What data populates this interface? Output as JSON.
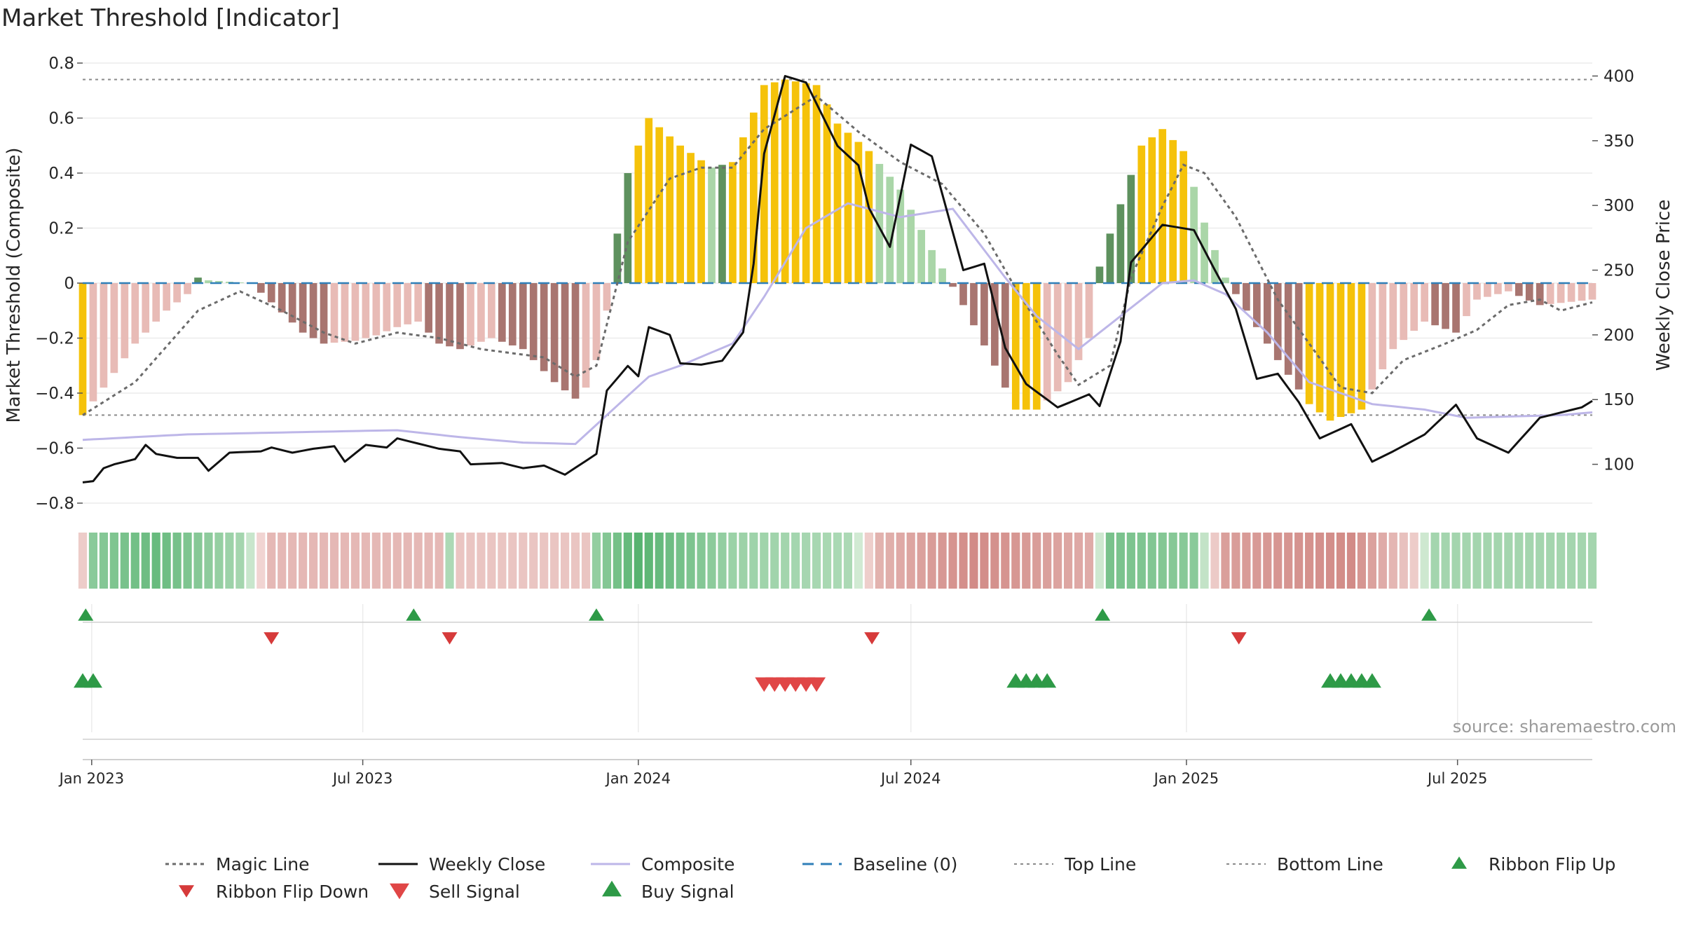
{
  "chart_data": {
    "type": "bar",
    "title": "Market Threshold [Indicator]",
    "ylabel": "Market Threshold (Composite)",
    "ylabel_right": "Weekly Close Price",
    "ylim": [
      -0.8,
      0.8
    ],
    "y2lim": [
      70,
      410
    ],
    "yticks": [
      0.8,
      0.6,
      0.4,
      0.2,
      0,
      -0.2,
      -0.4,
      -0.6,
      -0.8
    ],
    "ytick_labels": [
      "0.8",
      "0.6",
      "0.4",
      "0.2",
      "0",
      "−0.2",
      "−0.4",
      "−0.6",
      "−0.8"
    ],
    "y2ticks": [
      100,
      150,
      200,
      250,
      300,
      350,
      400
    ],
    "y2tick_labels": [
      "100",
      "150",
      "200",
      "250",
      "300",
      "350",
      "400"
    ],
    "x_start": "2022-12-26",
    "x_end": "2025-09-29",
    "x_ticks": [
      "2023-01-01",
      "2023-07-01",
      "2024-01-01",
      "2024-07-01",
      "2025-01-01",
      "2025-07-01"
    ],
    "x_tick_labels": [
      "Jan 2023",
      "Jul 2023",
      "Jan 2024",
      "Jul 2024",
      "Jan 2025",
      "Jul 2025"
    ],
    "top_line": 0.74,
    "bottom_line": -0.48,
    "baseline": 0,
    "source": "source: sharemaestro.com",
    "grid": true,
    "legend_position": "bottom",
    "colors": {
      "bar_extreme": "#f5c20a",
      "bar_pos_strong": "#5e915e",
      "bar_pos_weak": "#aad6a8",
      "bar_neg_strong": "#a87570",
      "bar_neg_weak": "#e8bbb6",
      "weekly_close": "#111111",
      "composite": "#bdb6e8",
      "magic_line": "#6b6b6b",
      "baseline": "#2f7fb8",
      "threshold_line": "#8a8a8a",
      "ribbon_flip_up": "#2e9a47",
      "ribbon_flip_down": "#d63a3a",
      "sell_signal": "#e04646",
      "buy_signal": "#2e9a47"
    },
    "bar_anchors": [
      [
        "2022-12-26",
        -0.48
      ],
      [
        "2023-01-09",
        -0.38
      ],
      [
        "2023-01-30",
        -0.22
      ],
      [
        "2023-02-20",
        -0.1
      ],
      [
        "2023-03-06",
        -0.04
      ],
      [
        "2023-03-13",
        0.02
      ],
      [
        "2023-03-20",
        0.01
      ],
      [
        "2023-04-17",
        0.0
      ],
      [
        "2023-05-01",
        -0.07
      ],
      [
        "2023-05-22",
        -0.18
      ],
      [
        "2023-06-05",
        -0.22
      ],
      [
        "2023-06-26",
        -0.21
      ],
      [
        "2023-07-10",
        -0.19
      ],
      [
        "2023-07-24",
        -0.16
      ],
      [
        "2023-08-07",
        -0.14
      ],
      [
        "2023-08-21",
        -0.22
      ],
      [
        "2023-09-04",
        -0.24
      ],
      [
        "2023-09-25",
        -0.2
      ],
      [
        "2023-10-16",
        -0.24
      ],
      [
        "2023-11-06",
        -0.36
      ],
      [
        "2023-11-20",
        -0.42
      ],
      [
        "2023-11-27",
        -0.38
      ],
      [
        "2023-12-04",
        -0.28
      ],
      [
        "2023-12-11",
        -0.1
      ],
      [
        "2023-12-18",
        0.18
      ],
      [
        "2023-12-25",
        0.4
      ],
      [
        "2024-01-08",
        0.6
      ],
      [
        "2024-01-29",
        0.5
      ],
      [
        "2024-02-19",
        0.42
      ],
      [
        "2024-03-04",
        0.44
      ],
      [
        "2024-03-18",
        0.62
      ],
      [
        "2024-03-25",
        0.72
      ],
      [
        "2024-04-08",
        0.74
      ],
      [
        "2024-04-29",
        0.72
      ],
      [
        "2024-05-13",
        0.58
      ],
      [
        "2024-06-03",
        0.48
      ],
      [
        "2024-06-24",
        0.34
      ],
      [
        "2024-07-15",
        0.12
      ],
      [
        "2024-08-05",
        -0.08
      ],
      [
        "2024-08-26",
        -0.3
      ],
      [
        "2024-09-09",
        -0.46
      ],
      [
        "2024-09-23",
        -0.46
      ],
      [
        "2024-10-14",
        -0.36
      ],
      [
        "2024-10-28",
        -0.2
      ],
      [
        "2024-11-04",
        0.06
      ],
      [
        "2024-11-11",
        0.18
      ],
      [
        "2024-12-02",
        0.5
      ],
      [
        "2024-12-16",
        0.56
      ],
      [
        "2024-12-30",
        0.48
      ],
      [
        "2025-01-13",
        0.22
      ],
      [
        "2025-01-27",
        0.02
      ],
      [
        "2025-02-10",
        -0.1
      ],
      [
        "2025-03-03",
        -0.28
      ],
      [
        "2025-03-24",
        -0.44
      ],
      [
        "2025-04-07",
        -0.5
      ],
      [
        "2025-04-28",
        -0.46
      ],
      [
        "2025-05-19",
        -0.24
      ],
      [
        "2025-06-09",
        -0.14
      ],
      [
        "2025-06-30",
        -0.18
      ],
      [
        "2025-07-14",
        -0.06
      ],
      [
        "2025-08-04",
        -0.03
      ],
      [
        "2025-08-25",
        -0.08
      ],
      [
        "2025-09-29",
        -0.06
      ]
    ],
    "close_anchors": [
      [
        "2022-12-26",
        86
      ],
      [
        "2023-01-02",
        87
      ],
      [
        "2023-01-09",
        97
      ],
      [
        "2023-01-16",
        100
      ],
      [
        "2023-01-30",
        104
      ],
      [
        "2023-02-06",
        115
      ],
      [
        "2023-02-13",
        108
      ],
      [
        "2023-02-27",
        105
      ],
      [
        "2023-03-13",
        105
      ],
      [
        "2023-03-20",
        95
      ],
      [
        "2023-04-03",
        109
      ],
      [
        "2023-04-24",
        110
      ],
      [
        "2023-05-01",
        113
      ],
      [
        "2023-05-15",
        109
      ],
      [
        "2023-05-29",
        112
      ],
      [
        "2023-06-12",
        114
      ],
      [
        "2023-06-19",
        102
      ],
      [
        "2023-07-03",
        115
      ],
      [
        "2023-07-17",
        113
      ],
      [
        "2023-07-24",
        120
      ],
      [
        "2023-08-07",
        116
      ],
      [
        "2023-08-21",
        112
      ],
      [
        "2023-09-04",
        110
      ],
      [
        "2023-09-11",
        100
      ],
      [
        "2023-10-02",
        101
      ],
      [
        "2023-10-16",
        97
      ],
      [
        "2023-10-30",
        99
      ],
      [
        "2023-11-13",
        92
      ],
      [
        "2023-12-04",
        108
      ],
      [
        "2023-12-11",
        157
      ],
      [
        "2023-12-25",
        176
      ],
      [
        "2024-01-01",
        168
      ],
      [
        "2024-01-08",
        206
      ],
      [
        "2024-01-22",
        200
      ],
      [
        "2024-01-29",
        178
      ],
      [
        "2024-02-12",
        177
      ],
      [
        "2024-02-26",
        180
      ],
      [
        "2024-03-11",
        202
      ],
      [
        "2024-03-18",
        255
      ],
      [
        "2024-03-25",
        340
      ],
      [
        "2024-04-08",
        400
      ],
      [
        "2024-04-22",
        395
      ],
      [
        "2024-05-13",
        346
      ],
      [
        "2024-05-27",
        331
      ],
      [
        "2024-06-03",
        298
      ],
      [
        "2024-06-17",
        268
      ],
      [
        "2024-07-01",
        347
      ],
      [
        "2024-07-15",
        338
      ],
      [
        "2024-08-05",
        250
      ],
      [
        "2024-08-19",
        255
      ],
      [
        "2024-09-02",
        190
      ],
      [
        "2024-09-16",
        162
      ],
      [
        "2024-10-07",
        144
      ],
      [
        "2024-10-28",
        154
      ],
      [
        "2024-11-04",
        145
      ],
      [
        "2024-11-18",
        195
      ],
      [
        "2024-11-25",
        256
      ],
      [
        "2024-12-16",
        285
      ],
      [
        "2025-01-06",
        281
      ],
      [
        "2025-01-20",
        250
      ],
      [
        "2025-02-03",
        220
      ],
      [
        "2025-02-17",
        166
      ],
      [
        "2025-03-03",
        170
      ],
      [
        "2025-03-17",
        148
      ],
      [
        "2025-03-31",
        120
      ],
      [
        "2025-04-21",
        131
      ],
      [
        "2025-05-05",
        102
      ],
      [
        "2025-05-19",
        110
      ],
      [
        "2025-06-09",
        123
      ],
      [
        "2025-06-30",
        146
      ],
      [
        "2025-07-14",
        120
      ],
      [
        "2025-08-04",
        109
      ],
      [
        "2025-08-25",
        136
      ],
      [
        "2025-09-08",
        140
      ],
      [
        "2025-09-22",
        144
      ],
      [
        "2025-09-29",
        149
      ]
    ],
    "composite_anchors": [
      [
        "2022-12-26",
        -0.57
      ],
      [
        "2023-03-06",
        -0.55
      ],
      [
        "2023-06-05",
        -0.54
      ],
      [
        "2023-07-24",
        -0.535
      ],
      [
        "2023-09-04",
        -0.56
      ],
      [
        "2023-10-16",
        -0.58
      ],
      [
        "2023-11-20",
        -0.585
      ],
      [
        "2023-12-11",
        -0.48
      ],
      [
        "2024-01-08",
        -0.34
      ],
      [
        "2024-01-29",
        -0.3
      ],
      [
        "2024-03-04",
        -0.22
      ],
      [
        "2024-03-25",
        -0.05
      ],
      [
        "2024-04-22",
        0.2
      ],
      [
        "2024-05-20",
        0.29
      ],
      [
        "2024-06-24",
        0.24
      ],
      [
        "2024-07-29",
        0.27
      ],
      [
        "2024-09-02",
        0.02
      ],
      [
        "2024-09-23",
        -0.12
      ],
      [
        "2024-10-21",
        -0.24
      ],
      [
        "2024-11-18",
        -0.12
      ],
      [
        "2024-12-16",
        0.0
      ],
      [
        "2025-01-06",
        0.01
      ],
      [
        "2025-01-27",
        -0.04
      ],
      [
        "2025-02-24",
        -0.18
      ],
      [
        "2025-03-24",
        -0.36
      ],
      [
        "2025-05-05",
        -0.44
      ],
      [
        "2025-06-09",
        -0.46
      ],
      [
        "2025-07-07",
        -0.49
      ],
      [
        "2025-08-04",
        -0.485
      ],
      [
        "2025-09-08",
        -0.48
      ],
      [
        "2025-09-29",
        -0.47
      ]
    ],
    "magic_anchors": [
      [
        "2022-12-26",
        -0.48
      ],
      [
        "2023-01-30",
        -0.36
      ],
      [
        "2023-03-13",
        -0.1
      ],
      [
        "2023-04-10",
        -0.03
      ],
      [
        "2023-05-08",
        -0.1
      ],
      [
        "2023-06-05",
        -0.18
      ],
      [
        "2023-06-26",
        -0.22
      ],
      [
        "2023-07-24",
        -0.18
      ],
      [
        "2023-08-21",
        -0.2
      ],
      [
        "2023-09-18",
        -0.24
      ],
      [
        "2023-10-30",
        -0.27
      ],
      [
        "2023-11-20",
        -0.34
      ],
      [
        "2023-12-04",
        -0.3
      ],
      [
        "2023-12-25",
        0.15
      ],
      [
        "2024-01-22",
        0.38
      ],
      [
        "2024-02-12",
        0.42
      ],
      [
        "2024-03-04",
        0.42
      ],
      [
        "2024-03-25",
        0.56
      ],
      [
        "2024-04-29",
        0.68
      ],
      [
        "2024-05-27",
        0.55
      ],
      [
        "2024-06-24",
        0.44
      ],
      [
        "2024-07-22",
        0.36
      ],
      [
        "2024-08-19",
        0.18
      ],
      [
        "2024-09-09",
        -0.02
      ],
      [
        "2024-10-07",
        -0.26
      ],
      [
        "2024-10-21",
        -0.37
      ],
      [
        "2024-11-11",
        -0.3
      ],
      [
        "2024-11-25",
        0.02
      ],
      [
        "2024-12-16",
        0.28
      ],
      [
        "2024-12-30",
        0.43
      ],
      [
        "2025-01-13",
        0.4
      ],
      [
        "2025-02-03",
        0.24
      ],
      [
        "2025-03-03",
        -0.06
      ],
      [
        "2025-03-24",
        -0.22
      ],
      [
        "2025-04-14",
        -0.38
      ],
      [
        "2025-05-05",
        -0.4
      ],
      [
        "2025-05-26",
        -0.28
      ],
      [
        "2025-06-23",
        -0.22
      ],
      [
        "2025-07-14",
        -0.17
      ],
      [
        "2025-08-04",
        -0.08
      ],
      [
        "2025-08-25",
        -0.06
      ],
      [
        "2025-09-08",
        -0.1
      ],
      [
        "2025-09-29",
        -0.07
      ]
    ],
    "ribbon_anchors": [
      [
        "2022-12-26",
        -0.15
      ],
      [
        "2023-01-02",
        0.5
      ],
      [
        "2023-02-13",
        0.7
      ],
      [
        "2023-04-10",
        0.35
      ],
      [
        "2023-05-01",
        -0.3
      ],
      [
        "2023-08-21",
        -0.3
      ],
      [
        "2023-08-28",
        0.3
      ],
      [
        "2023-09-04",
        -0.2
      ],
      [
        "2023-11-27",
        -0.2
      ],
      [
        "2023-12-04",
        0.45
      ],
      [
        "2024-01-01",
        0.8
      ],
      [
        "2024-03-04",
        0.4
      ],
      [
        "2024-05-20",
        0.3
      ],
      [
        "2024-06-10",
        -0.35
      ],
      [
        "2024-08-12",
        -0.65
      ],
      [
        "2024-10-28",
        -0.4
      ],
      [
        "2024-11-11",
        0.6
      ],
      [
        "2025-01-06",
        0.5
      ],
      [
        "2025-01-27",
        -0.5
      ],
      [
        "2025-04-21",
        -0.65
      ],
      [
        "2025-06-02",
        -0.15
      ],
      [
        "2025-06-16",
        0.35
      ],
      [
        "2025-09-29",
        0.35
      ]
    ],
    "ribbon_flip_up": [
      "2022-12-28",
      "2023-08-04",
      "2023-12-04",
      "2024-11-06",
      "2025-06-12"
    ],
    "ribbon_flip_down": [
      "2023-05-01",
      "2023-08-28",
      "2024-06-05",
      "2025-02-05"
    ],
    "sell_signal": [
      "2024-03-25",
      "2024-04-01",
      "2024-04-08",
      "2024-04-15",
      "2024-04-22",
      "2024-04-29"
    ],
    "buy_signal": [
      "2022-12-26",
      "2023-01-02",
      "2024-09-09",
      "2024-09-16",
      "2024-09-23",
      "2024-09-30",
      "2025-04-07",
      "2025-04-14",
      "2025-04-21",
      "2025-04-28",
      "2025-05-05"
    ],
    "legend": {
      "magic_line": "Magic Line",
      "weekly_close": "Weekly Close",
      "composite": "Composite",
      "baseline": "Baseline (0)",
      "top_line": "Top Line",
      "bottom_line": "Bottom Line",
      "ribbon_flip_up": "Ribbon Flip Up",
      "ribbon_flip_down": "Ribbon Flip Down",
      "sell_signal": "Sell Signal",
      "buy_signal": "Buy Signal"
    }
  }
}
